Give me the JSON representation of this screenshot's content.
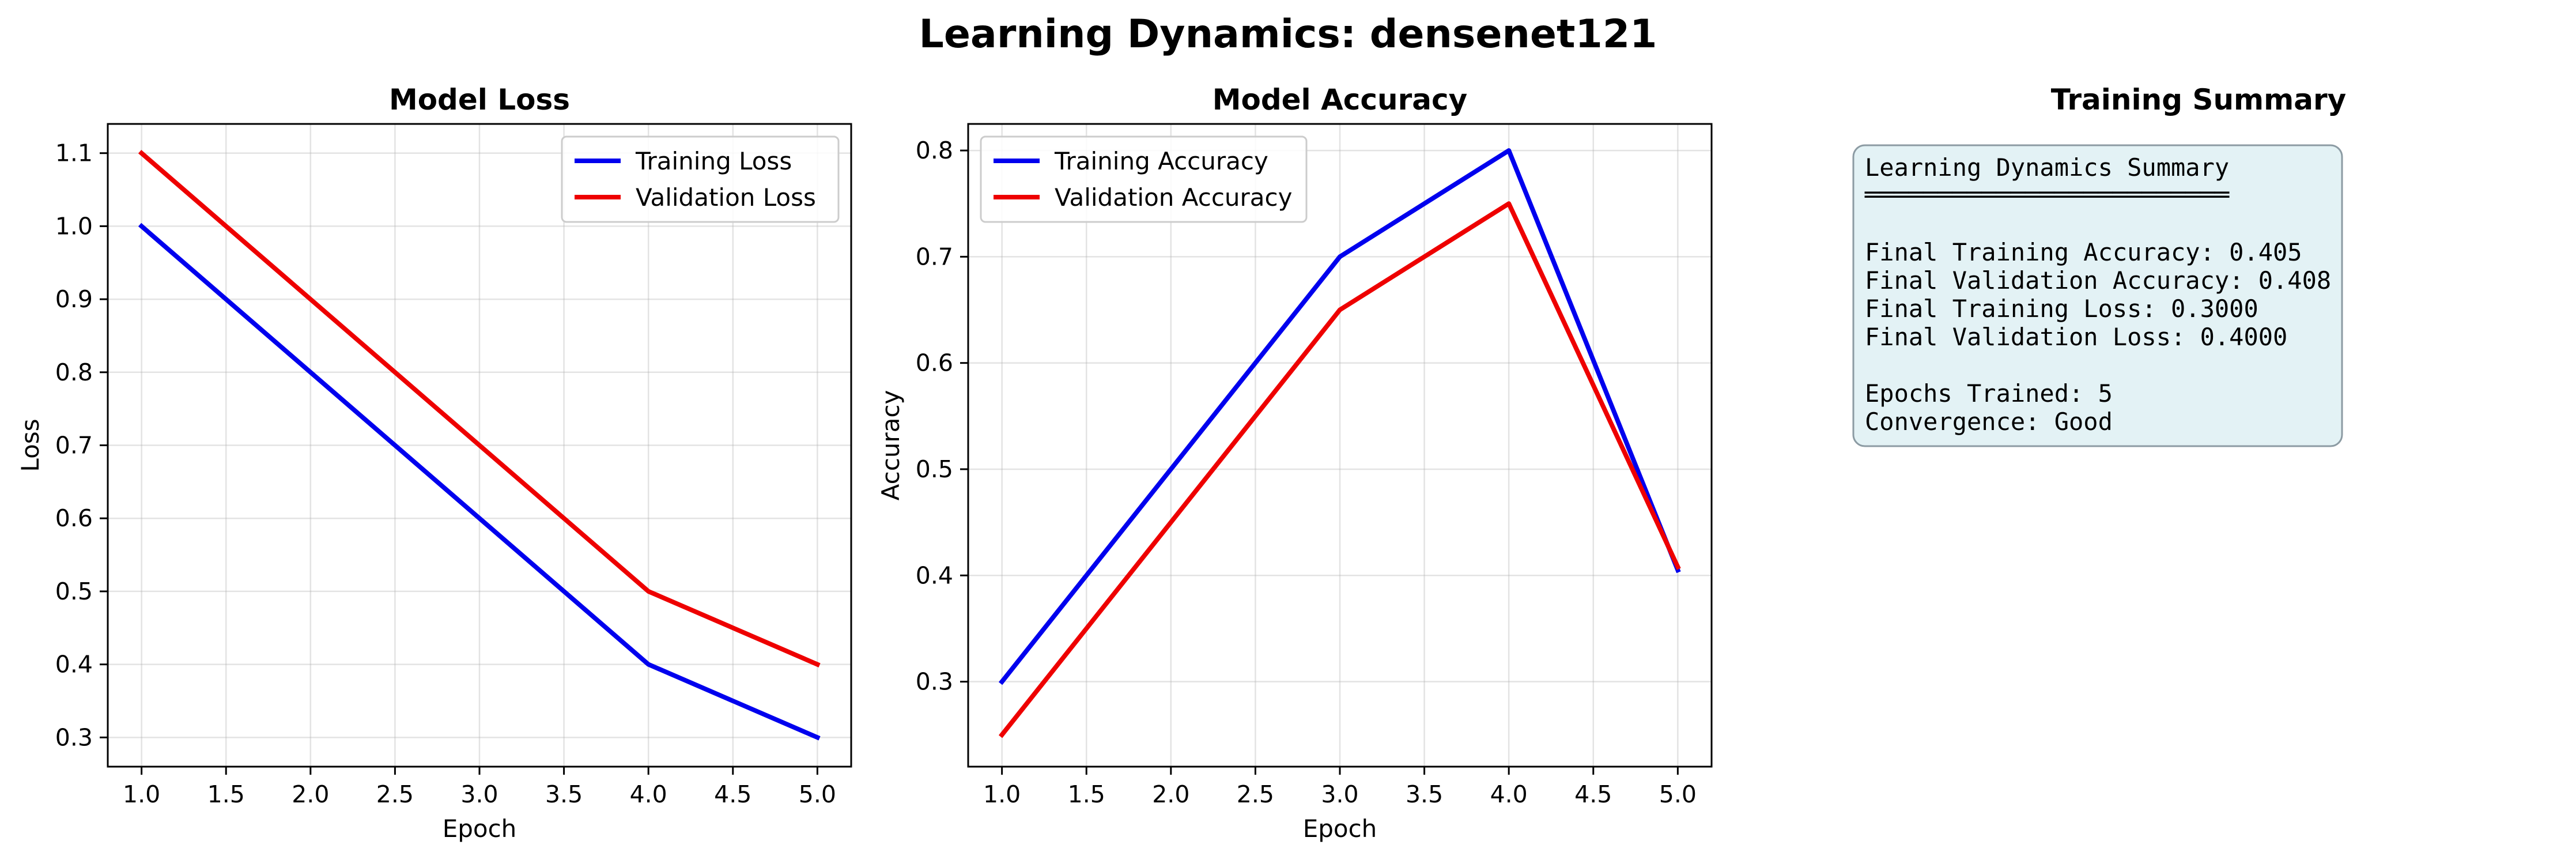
{
  "suptitle": "Learning Dynamics: densenet121",
  "colors": {
    "training": "#0000ee",
    "validation": "#ee0000",
    "summary_bg": "#e3f2f5",
    "summary_edge": "#8c9ba3"
  },
  "chart_data": [
    {
      "type": "line",
      "title": "Model Loss",
      "xlabel": "Epoch",
      "ylabel": "Loss",
      "xlim": [
        0.8,
        5.2
      ],
      "ylim": [
        0.26,
        1.14
      ],
      "xticks": [
        "1.0",
        "1.5",
        "2.0",
        "2.5",
        "3.0",
        "3.5",
        "4.0",
        "4.5",
        "5.0"
      ],
      "yticks": [
        "0.3",
        "0.4",
        "0.5",
        "0.6",
        "0.7",
        "0.8",
        "0.9",
        "1.0",
        "1.1"
      ],
      "grid": true,
      "legend_position": "upper right",
      "x": [
        1,
        2,
        3,
        4,
        5
      ],
      "series": [
        {
          "name": "Training Loss",
          "color": "#0000ee",
          "values": [
            1.0,
            0.8,
            0.6,
            0.4,
            0.3
          ]
        },
        {
          "name": "Validation Loss",
          "color": "#ee0000",
          "values": [
            1.1,
            0.9,
            0.7,
            0.5,
            0.4
          ]
        }
      ]
    },
    {
      "type": "line",
      "title": "Model Accuracy",
      "xlabel": "Epoch",
      "ylabel": "Accuracy",
      "xlim": [
        0.8,
        5.2
      ],
      "ylim": [
        0.22,
        0.825
      ],
      "xticks": [
        "1.0",
        "1.5",
        "2.0",
        "2.5",
        "3.0",
        "3.5",
        "4.0",
        "4.5",
        "5.0"
      ],
      "yticks": [
        "0.3",
        "0.4",
        "0.5",
        "0.6",
        "0.7",
        "0.8"
      ],
      "grid": true,
      "legend_position": "upper left",
      "x": [
        1,
        2,
        3,
        4,
        5
      ],
      "series": [
        {
          "name": "Training Accuracy",
          "color": "#0000ee",
          "values": [
            0.3,
            0.5,
            0.7,
            0.8,
            0.405
          ]
        },
        {
          "name": "Validation Accuracy",
          "color": "#ee0000",
          "values": [
            0.25,
            0.45,
            0.65,
            0.75,
            0.408
          ]
        }
      ]
    }
  ],
  "summary": {
    "title": "Training Summary",
    "heading": "Learning Dynamics Summary",
    "underline": "═════════════════════════",
    "lines": [
      "Final Training Accuracy: 0.405",
      "Final Validation Accuracy: 0.408",
      "Final Training Loss: 0.3000",
      "Final Validation Loss: 0.4000",
      "",
      "Epochs Trained: 5",
      "Convergence: Good"
    ]
  }
}
